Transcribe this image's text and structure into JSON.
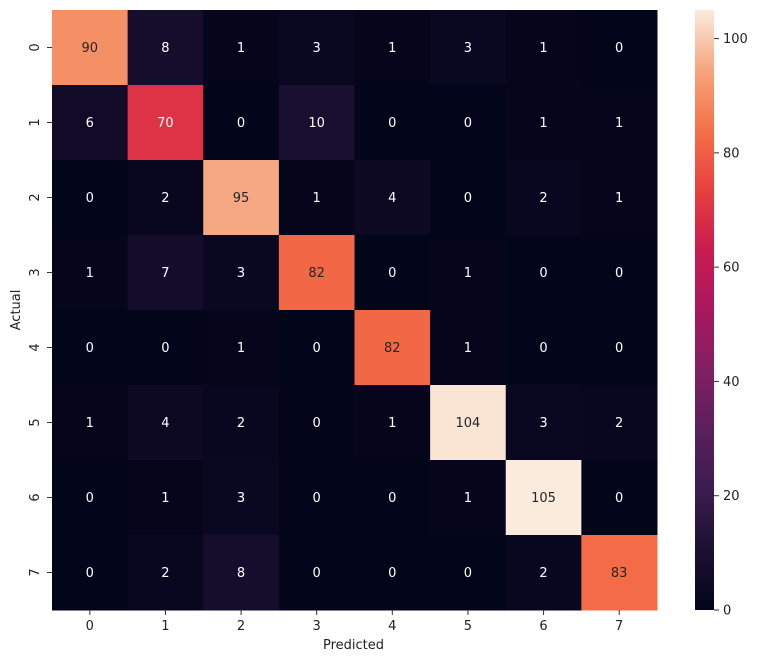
{
  "chart_data": {
    "type": "heatmap",
    "title": "",
    "xlabel": "Predicted",
    "ylabel": "Actual",
    "x_categories": [
      "0",
      "1",
      "2",
      "3",
      "4",
      "5",
      "6",
      "7"
    ],
    "y_categories": [
      "0",
      "1",
      "2",
      "3",
      "4",
      "5",
      "6",
      "7"
    ],
    "values": [
      [
        90,
        8,
        1,
        3,
        1,
        3,
        1,
        0
      ],
      [
        6,
        70,
        0,
        10,
        0,
        0,
        1,
        1
      ],
      [
        0,
        2,
        95,
        1,
        4,
        0,
        2,
        1
      ],
      [
        1,
        7,
        3,
        82,
        0,
        1,
        0,
        0
      ],
      [
        0,
        0,
        1,
        0,
        82,
        1,
        0,
        0
      ],
      [
        1,
        4,
        2,
        0,
        1,
        104,
        3,
        2
      ],
      [
        0,
        1,
        3,
        0,
        0,
        1,
        105,
        0
      ],
      [
        0,
        2,
        8,
        0,
        0,
        0,
        2,
        83
      ]
    ],
    "colormap": "rocket",
    "vmin": 0,
    "vmax": 105,
    "colorbar": {
      "ticks": [
        0,
        20,
        40,
        60,
        80,
        100
      ],
      "tick_labels": [
        "0",
        "20",
        "40",
        "60",
        "80",
        "100"
      ]
    },
    "annotations": true,
    "grid": false,
    "legend": "colorbar-right"
  }
}
